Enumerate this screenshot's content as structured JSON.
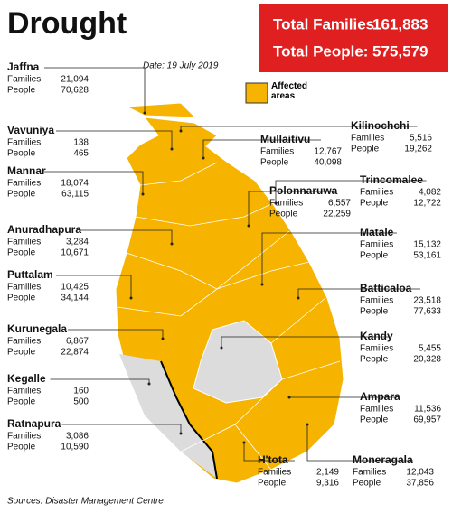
{
  "header": {
    "title": "Drought",
    "date": "Date: 19 July 2019"
  },
  "totals": [
    {
      "label": "Total Families:",
      "value": "161,883"
    },
    {
      "label": "Total People:",
      "value": "575,579"
    }
  ],
  "legend": {
    "label": "Affected areas"
  },
  "row_labels": [
    "Families",
    "People"
  ],
  "districts": [
    {
      "name": "Jaffna",
      "families": "21,094",
      "people": "70,628"
    },
    {
      "name": "Vavuniya",
      "families": "138",
      "people": "465"
    },
    {
      "name": "Mannar",
      "families": "18,074",
      "people": "63,115"
    },
    {
      "name": "Anuradhapura",
      "families": "3,284",
      "people": "10,671"
    },
    {
      "name": "Puttalam",
      "families": "10,425",
      "people": "34,144"
    },
    {
      "name": "Kurunegala",
      "families": "6,867",
      "people": "22,874"
    },
    {
      "name": "Kegalle",
      "families": "160",
      "people": "500"
    },
    {
      "name": "Ratnapura",
      "families": "3,086",
      "people": "10,590"
    },
    {
      "name": "Kilinochchi",
      "families": "5,516",
      "people": "19,262"
    },
    {
      "name": "Mullaitivu",
      "families": "12,767",
      "people": "40,098"
    },
    {
      "name": "Polonnaruwa",
      "families": "6,557",
      "people": "22,259"
    },
    {
      "name": "Trincomalee",
      "families": "4,082",
      "people": "12,722"
    },
    {
      "name": "Matale",
      "families": "15,132",
      "people": "53,161"
    },
    {
      "name": "Batticaloa",
      "families": "23,518",
      "people": "77,633"
    },
    {
      "name": "Kandy",
      "families": "5,455",
      "people": "20,328"
    },
    {
      "name": "Ampara",
      "families": "11,536",
      "people": "69,957"
    },
    {
      "name": "H'tota",
      "families": "2,149",
      "people": "9,316"
    },
    {
      "name": "Moneragala",
      "families": "12,043",
      "people": "37,856"
    }
  ],
  "source": "Sources: Disaster Management Centre"
}
